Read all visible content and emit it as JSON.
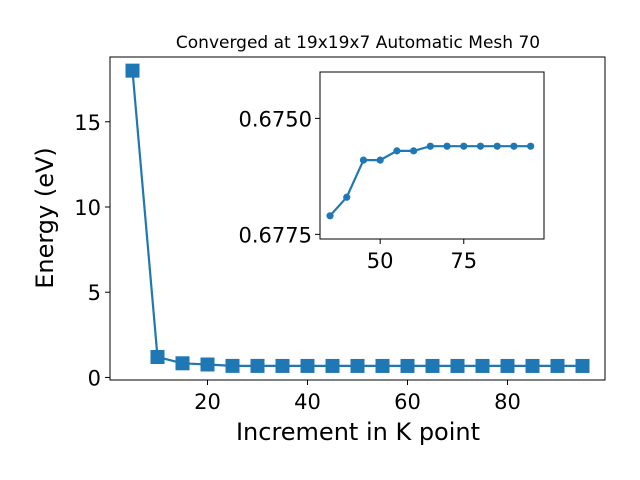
{
  "chart_data": [
    {
      "type": "line",
      "title": "Converged at 19x19x7 Automatic Mesh 70",
      "xlabel": "Increment in K point",
      "ylabel": "Energy (eV)",
      "xlim": [
        0.5,
        99.5
      ],
      "ylim": [
        -0.15,
        18.8
      ],
      "xticks": [
        20,
        40,
        60,
        80
      ],
      "yticks": [
        0,
        5,
        10,
        15
      ],
      "grid": false,
      "marker": "square",
      "color": "#1f77b4",
      "series": [
        {
          "x": [
            5,
            10,
            15,
            20,
            25,
            30,
            35,
            40,
            45,
            50,
            55,
            60,
            65,
            70,
            75,
            80,
            85,
            90,
            95
          ],
          "values": [
            18.0,
            1.2,
            0.83,
            0.76,
            0.6781,
            0.6767,
            0.6755,
            0.6754,
            0.675,
            0.6749,
            0.6745,
            0.6745,
            0.6744,
            0.6744,
            0.6744,
            0.6744,
            0.6744,
            0.6744,
            0.6744
          ]
        }
      ]
    },
    {
      "type": "line",
      "title": "",
      "xlabel": "",
      "ylabel": "",
      "xlim": [
        32,
        99
      ],
      "ylim": [
        0.6776,
        0.674
      ],
      "y_axis_inverted": true,
      "xticks": [
        50,
        75
      ],
      "yticks": [
        0.675,
        0.6775
      ],
      "ytick_labels": [
        "0.6750",
        "0.6775"
      ],
      "grid": false,
      "marker": "circle",
      "color": "#1f77b4",
      "series": [
        {
          "x": [
            35,
            40,
            45,
            50,
            55,
            60,
            65,
            70,
            75,
            80,
            85,
            90,
            95
          ],
          "values": [
            0.6771,
            0.6767,
            0.6759,
            0.6759,
            0.6757,
            0.6757,
            0.6756,
            0.6756,
            0.6756,
            0.6756,
            0.6756,
            0.6756,
            0.6756
          ]
        }
      ]
    }
  ]
}
